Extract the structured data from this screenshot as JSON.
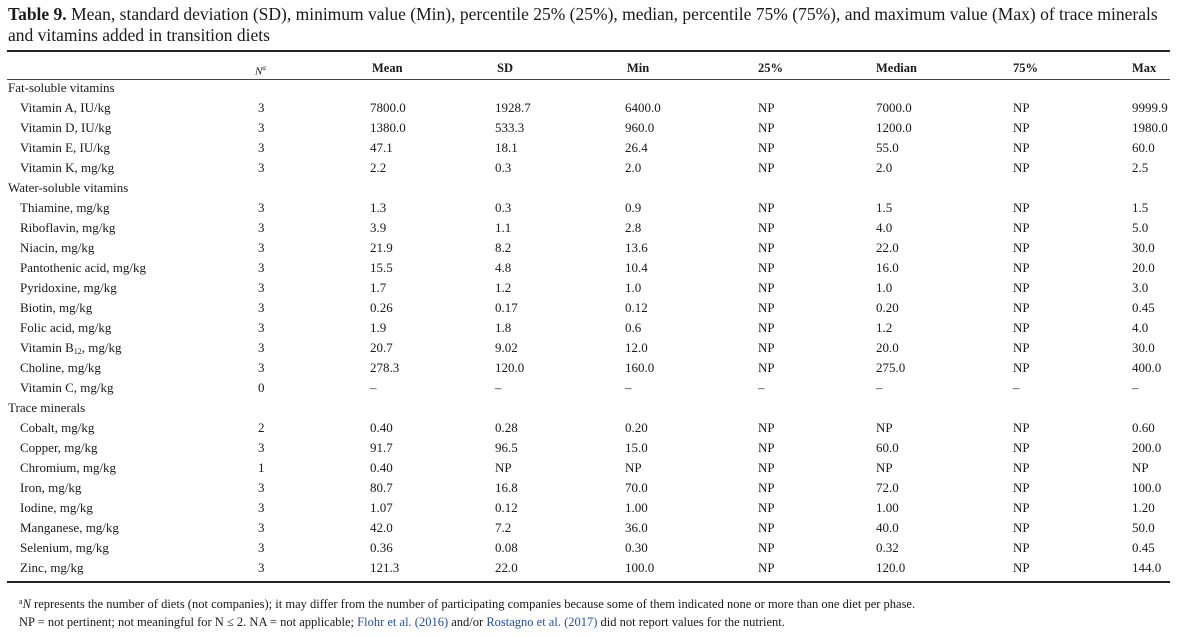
{
  "caption": {
    "label": "Table 9.",
    "text": " Mean, standard deviation (SD), minimum value (Min), percentile 25% (25%), median, percentile 75% (75%), and maximum value (Max) of trace minerals and vitamins added in transition diets"
  },
  "headers": {
    "n": "N",
    "n_sup": "a",
    "mean": "Mean",
    "sd": "SD",
    "min": "Min",
    "p25": "25%",
    "median": "Median",
    "p75": "75%",
    "max": "Max"
  },
  "sections": {
    "fat": "Fat-soluble vitamins",
    "water": "Water-soluble vitamins",
    "trace": "Trace minerals"
  },
  "rows": [
    {
      "label": "Vitamin A, IU/kg",
      "n": "3",
      "mean": "7800.0",
      "sd": "1928.7",
      "min": "6400.0",
      "p25": "NP",
      "median": "7000.0",
      "p75": "NP",
      "max": "9999.9"
    },
    {
      "label": "Vitamin D, IU/kg",
      "n": "3",
      "mean": "1380.0",
      "sd": "533.3",
      "min": "960.0",
      "p25": "NP",
      "median": "1200.0",
      "p75": "NP",
      "max": "1980.0"
    },
    {
      "label": "Vitamin E, IU/kg",
      "n": "3",
      "mean": "47.1",
      "sd": "18.1",
      "min": "26.4",
      "p25": "NP",
      "median": "55.0",
      "p75": "NP",
      "max": "60.0"
    },
    {
      "label": "Vitamin K, mg/kg",
      "n": "3",
      "mean": "2.2",
      "sd": "0.3",
      "min": "2.0",
      "p25": "NP",
      "median": "2.0",
      "p75": "NP",
      "max": "2.5"
    },
    {
      "label": "Thiamine, mg/kg",
      "n": "3",
      "mean": "1.3",
      "sd": "0.3",
      "min": "0.9",
      "p25": "NP",
      "median": "1.5",
      "p75": "NP",
      "max": "1.5"
    },
    {
      "label": "Riboflavin, mg/kg",
      "n": "3",
      "mean": "3.9",
      "sd": "1.1",
      "min": "2.8",
      "p25": "NP",
      "median": "4.0",
      "p75": "NP",
      "max": "5.0"
    },
    {
      "label": "Niacin, mg/kg",
      "n": "3",
      "mean": "21.9",
      "sd": "8.2",
      "min": "13.6",
      "p25": "NP",
      "median": "22.0",
      "p75": "NP",
      "max": "30.0"
    },
    {
      "label": "Pantothenic acid, mg/kg",
      "n": "3",
      "mean": "15.5",
      "sd": "4.8",
      "min": "10.4",
      "p25": "NP",
      "median": "16.0",
      "p75": "NP",
      "max": "20.0"
    },
    {
      "label": "Pyridoxine, mg/kg",
      "n": "3",
      "mean": "1.7",
      "sd": "1.2",
      "min": "1.0",
      "p25": "NP",
      "median": "1.0",
      "p75": "NP",
      "max": "3.0"
    },
    {
      "label": "Biotin, mg/kg",
      "n": "3",
      "mean": "0.26",
      "sd": "0.17",
      "min": "0.12",
      "p25": "NP",
      "median": "0.20",
      "p75": "NP",
      "max": "0.45"
    },
    {
      "label": "Folic acid, mg/kg",
      "n": "3",
      "mean": "1.9",
      "sd": "1.8",
      "min": "0.6",
      "p25": "NP",
      "median": "1.2",
      "p75": "NP",
      "max": "4.0"
    },
    {
      "label": "Vitamin B",
      "label_sub": "12",
      "label_after": ", mg/kg",
      "n": "3",
      "mean": "20.7",
      "sd": "9.02",
      "min": "12.0",
      "p25": "NP",
      "median": "20.0",
      "p75": "NP",
      "max": "30.0"
    },
    {
      "label": "Choline, mg/kg",
      "n": "3",
      "mean": "278.3",
      "sd": "120.0",
      "min": "160.0",
      "p25": "NP",
      "median": "275.0",
      "p75": "NP",
      "max": "400.0"
    },
    {
      "label": "Vitamin C, mg/kg",
      "n": "0",
      "mean": "–",
      "sd": "–",
      "min": "–",
      "p25": "–",
      "median": "–",
      "p75": "–",
      "max": "–"
    },
    {
      "label": "Cobalt, mg/kg",
      "n": "2",
      "mean": "0.40",
      "sd": "0.28",
      "min": "0.20",
      "p25": "NP",
      "median": "NP",
      "p75": "NP",
      "max": "0.60"
    },
    {
      "label": "Copper, mg/kg",
      "n": "3",
      "mean": "91.7",
      "sd": "96.5",
      "min": "15.0",
      "p25": "NP",
      "median": "60.0",
      "p75": "NP",
      "max": "200.0"
    },
    {
      "label": "Chromium, mg/kg",
      "n": "1",
      "mean": "0.40",
      "sd": "NP",
      "min": "NP",
      "p25": "NP",
      "median": "NP",
      "p75": "NP",
      "max": "NP"
    },
    {
      "label": "Iron, mg/kg",
      "n": "3",
      "mean": "80.7",
      "sd": "16.8",
      "min": "70.0",
      "p25": "NP",
      "median": "72.0",
      "p75": "NP",
      "max": "100.0"
    },
    {
      "label": "Iodine, mg/kg",
      "n": "3",
      "mean": "1.07",
      "sd": "0.12",
      "min": "1.00",
      "p25": "NP",
      "median": "1.00",
      "p75": "NP",
      "max": "1.20"
    },
    {
      "label": "Manganese, mg/kg",
      "n": "3",
      "mean": "42.0",
      "sd": "7.2",
      "min": "36.0",
      "p25": "NP",
      "median": "40.0",
      "p75": "NP",
      "max": "50.0"
    },
    {
      "label": "Selenium, mg/kg",
      "n": "3",
      "mean": "0.36",
      "sd": "0.08",
      "min": "0.30",
      "p25": "NP",
      "median": "0.32",
      "p75": "NP",
      "max": "0.45"
    },
    {
      "label": "Zinc, mg/kg",
      "n": "3",
      "mean": "121.3",
      "sd": "22.0",
      "min": "100.0",
      "p25": "NP",
      "median": "120.0",
      "p75": "NP",
      "max": "144.0"
    }
  ],
  "footnotes": {
    "fn1_sup": "a",
    "fn1_n": "N",
    "fn1_text": " represents the number of diets (not companies); it may differ from the number of participating companies because some of them indicated none or more than one diet per phase.",
    "fn2_pre": "NP = not pertinent; not meaningful for N ≤ 2. NA = not applicable; ",
    "fn2_link1": "Flohr et al. (2016)",
    "fn2_mid": " and/or ",
    "fn2_link2": "Rostagno et al. (2017)",
    "fn2_post": " did not report values for the nutrient."
  },
  "colors": {
    "link": "#1f4fb0",
    "text": "#1a1a1a"
  }
}
